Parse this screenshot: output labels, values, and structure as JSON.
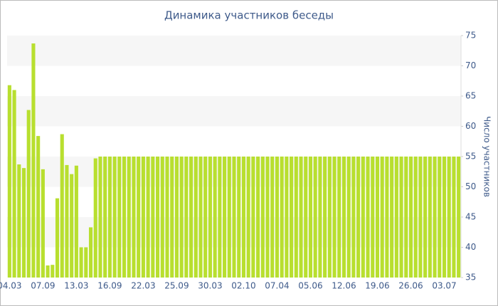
{
  "chart_data": {
    "type": "bar",
    "title": "Динамика участников беседы",
    "y_label": "Число участников",
    "categories": [
      "04.03",
      null,
      null,
      null,
      null,
      null,
      null,
      "07.09",
      null,
      null,
      null,
      null,
      null,
      null,
      "13.03",
      null,
      null,
      null,
      null,
      null,
      null,
      "16.09",
      null,
      null,
      null,
      null,
      null,
      null,
      "22.03",
      null,
      null,
      null,
      null,
      null,
      null,
      "25.09",
      null,
      null,
      null,
      null,
      null,
      null,
      "30.03",
      null,
      null,
      null,
      null,
      null,
      null,
      "02.10",
      null,
      null,
      null,
      null,
      null,
      null,
      "07.04",
      null,
      null,
      null,
      null,
      null,
      null,
      "05.06",
      null,
      null,
      null,
      null,
      null,
      null,
      "12.06",
      null,
      null,
      null,
      null,
      null,
      null,
      "19.06",
      null,
      null,
      null,
      null,
      null,
      null,
      "26.06",
      null,
      null,
      null,
      null,
      null,
      null,
      "03.07",
      null,
      null,
      null
    ],
    "values": [
      66.8,
      66,
      53.7,
      53.1,
      62.7,
      73.7,
      58.4,
      52.9,
      37,
      37.1,
      48.1,
      58.7,
      53.6,
      52.1,
      53.5,
      40,
      40,
      43.3,
      54.7,
      55,
      55,
      55,
      55,
      55,
      55,
      55,
      55,
      55,
      55,
      55,
      55,
      55,
      55,
      55,
      55,
      55,
      55,
      55,
      55,
      55,
      55,
      55,
      55,
      55,
      55,
      55,
      55,
      55,
      55,
      55,
      55,
      55,
      55,
      55,
      55,
      55,
      55,
      55,
      55,
      55,
      55,
      55,
      55,
      55,
      55,
      55,
      55,
      55,
      55,
      55,
      55,
      55,
      55,
      55,
      55,
      55,
      55,
      55,
      55,
      55,
      55,
      55,
      55,
      55,
      55,
      55,
      55,
      55,
      55,
      55,
      55,
      55,
      55,
      55,
      55
    ],
    "color": "#b8df2f",
    "ylim": [
      35,
      75
    ],
    "yticks": [
      35,
      40,
      45,
      50,
      55,
      60,
      65,
      70,
      75
    ],
    "grid": "bands",
    "y_axis_side": "right"
  }
}
